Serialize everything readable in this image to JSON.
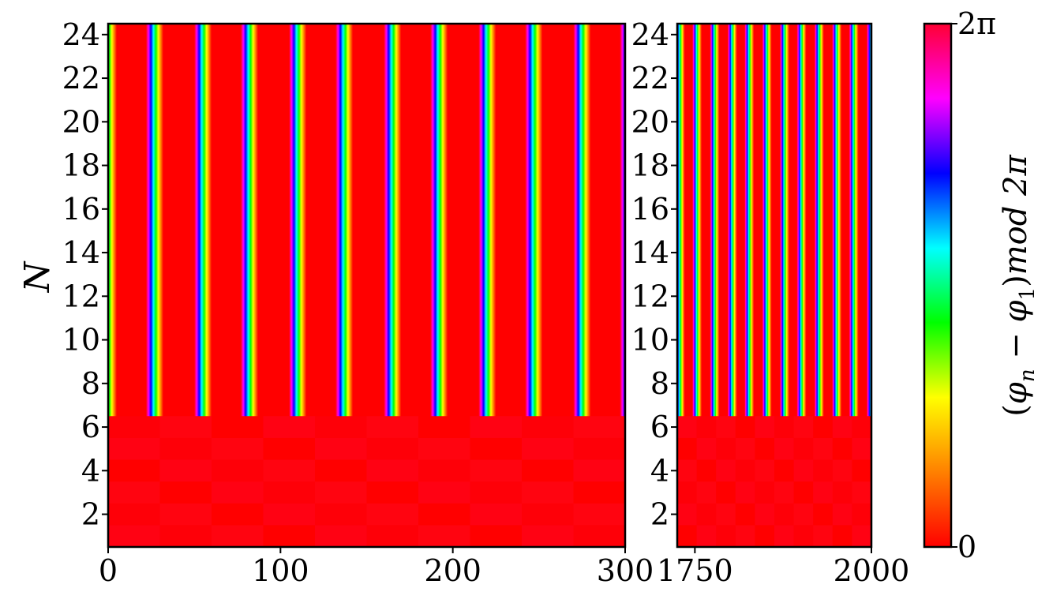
{
  "chart_data": {
    "type": "heatmap",
    "ylabel": "N",
    "colorbar": {
      "label": "(φn − φ1)mod 2π",
      "label_parts": {
        "open": "(",
        "phi_n": "φ",
        "n_sub": "n",
        "minus": " − ",
        "phi_1": "φ",
        "one_sub": "1",
        "close": ")",
        "mod": "mod",
        "two_pi": "2π"
      },
      "min": 0,
      "max": "2π",
      "tick_labels": [
        "0",
        "2π"
      ],
      "colormap": "hsv",
      "colors": [
        "#ff0000",
        "#ff8000",
        "#ffff00",
        "#00ff00",
        "#00ffff",
        "#0000ff",
        "#ff00ff",
        "#ff0033"
      ]
    },
    "panels": [
      {
        "x_range": [
          0,
          300
        ],
        "x_ticks": [
          0,
          100,
          200,
          300
        ],
        "x_tick_labels": [
          "0",
          "100",
          "200",
          "300"
        ],
        "y_range": [
          0.5,
          24.5
        ],
        "y_ticks": [
          2,
          4,
          6,
          8,
          10,
          12,
          14,
          16,
          18,
          20,
          22,
          24
        ],
        "y_tick_labels": [
          "2",
          "4",
          "6",
          "8",
          "10",
          "12",
          "14",
          "16",
          "18",
          "20",
          "22",
          "24"
        ],
        "synchronized_rows": [
          1,
          6
        ],
        "phase_slip_rows": [
          7,
          24
        ],
        "phase_slip_times": [
          0,
          27,
          55,
          82,
          110,
          137,
          165,
          192,
          220,
          247,
          275,
          302
        ]
      },
      {
        "x_range": [
          1725,
          2000
        ],
        "x_ticks": [
          1750,
          2000
        ],
        "x_tick_labels": [
          "1750",
          "2000"
        ],
        "y_range": [
          0.5,
          24.5
        ],
        "y_ticks": [
          2,
          4,
          6,
          8,
          10,
          12,
          14,
          16,
          18,
          20,
          22,
          24
        ],
        "y_tick_labels": [
          "2",
          "4",
          "6",
          "8",
          "10",
          "12",
          "14",
          "16",
          "18",
          "20",
          "22",
          "24"
        ],
        "synchronized_rows": [
          1,
          6
        ],
        "phase_slip_rows": [
          7,
          24
        ],
        "phase_slip_times": [
          1729,
          1753,
          1778,
          1803,
          1827,
          1852,
          1877,
          1901,
          1926,
          1951,
          1975,
          2000
        ]
      }
    ]
  }
}
